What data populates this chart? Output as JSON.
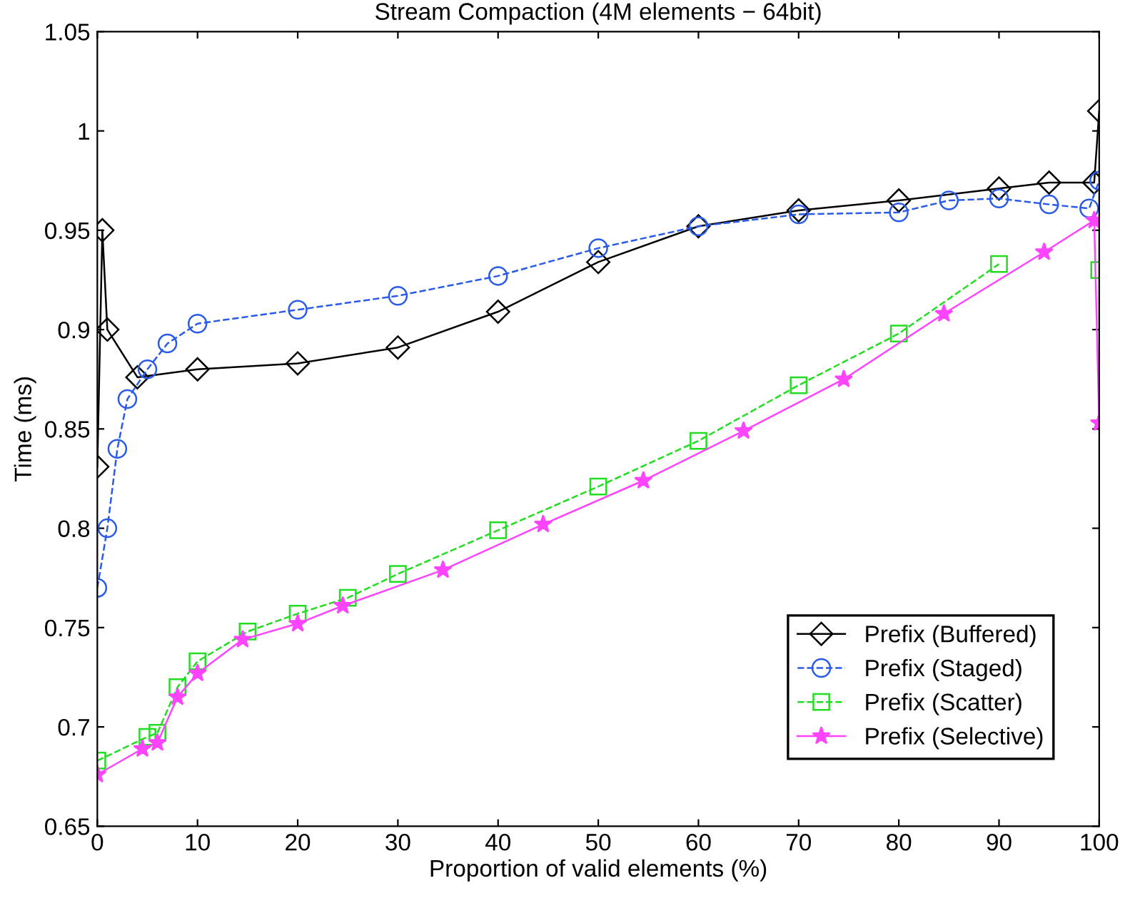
{
  "chart_data": {
    "type": "line",
    "title": "Stream Compaction (4M elements − 64bit)",
    "xlabel": "Proportion of valid elements (%)",
    "ylabel": "Time (ms)",
    "xlim": [
      0,
      100
    ],
    "xticks": [
      0,
      10,
      20,
      30,
      40,
      50,
      60,
      70,
      80,
      90,
      100
    ],
    "ylim": [
      0.65,
      1.05
    ],
    "yticks": [
      0.65,
      0.7,
      0.75,
      0.8,
      0.85,
      0.9,
      0.95,
      1,
      1.05
    ],
    "grid": false,
    "legend": "bottom right",
    "series": [
      {
        "name": "Prefix (Buffered)",
        "color": "#000000",
        "marker": "diamond",
        "line_style": "solid",
        "x": [
          0,
          0.5,
          1,
          4,
          10,
          20,
          30,
          40,
          50,
          60,
          70,
          80,
          90,
          95,
          99.5,
          100
        ],
        "values": [
          0.831,
          0.95,
          0.9,
          0.876,
          0.88,
          0.883,
          0.891,
          0.909,
          0.934,
          0.952,
          0.96,
          0.965,
          0.971,
          0.974,
          0.974,
          1.01
        ]
      },
      {
        "name": "Prefix (Staged)",
        "color": "#2a5be8",
        "marker": "circle",
        "line_style": "dashed",
        "x": [
          0,
          1,
          2,
          3,
          5,
          7,
          10,
          20,
          30,
          40,
          50,
          60,
          70,
          80,
          85,
          90,
          95,
          99,
          100
        ],
        "values": [
          0.77,
          0.8,
          0.84,
          0.865,
          0.88,
          0.893,
          0.903,
          0.91,
          0.917,
          0.927,
          0.941,
          0.952,
          0.958,
          0.959,
          0.965,
          0.966,
          0.963,
          0.961,
          0.975
        ]
      },
      {
        "name": "Prefix (Scatter)",
        "color": "#22dd22",
        "marker": "square",
        "line_style": "dashed",
        "x": [
          0,
          5,
          6,
          8,
          10,
          15,
          20,
          25,
          30,
          40,
          50,
          60,
          70,
          80,
          90,
          99.5,
          100
        ],
        "values": [
          0.683,
          0.695,
          0.697,
          0.72,
          0.733,
          0.748,
          0.757,
          0.765,
          0.777,
          0.799,
          0.821,
          0.844,
          0.872,
          0.898,
          0.933,
          null,
          0.93
        ]
      },
      {
        "name": "Prefix (Selective)",
        "color": "#ff44ff",
        "marker": "star",
        "line_style": "solid",
        "x": [
          0,
          4.5,
          6,
          8,
          10,
          14.5,
          20,
          24.5,
          34.5,
          44.5,
          54.5,
          64.5,
          74.5,
          84.5,
          94.5,
          99.5,
          100
        ],
        "values": [
          0.676,
          0.689,
          0.692,
          0.715,
          0.727,
          0.744,
          0.752,
          0.761,
          0.779,
          0.802,
          0.824,
          0.849,
          0.875,
          0.908,
          0.939,
          0.955,
          0.853
        ]
      }
    ]
  }
}
